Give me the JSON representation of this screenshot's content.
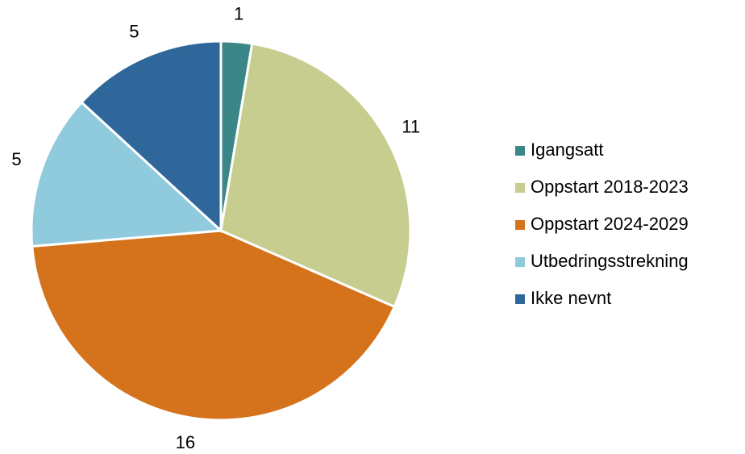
{
  "chart_data": {
    "type": "pie",
    "categories": [
      "Igangsatt",
      "Oppstart 2018-2023",
      "Oppstart 2024-2029",
      "Utbedringsstrekning",
      "Ikke nevnt"
    ],
    "values": [
      1,
      11,
      16,
      5,
      5
    ],
    "colors": [
      "#3b8686",
      "#c6cd8f",
      "#d5731c",
      "#8fcadd",
      "#30679a"
    ],
    "legend": "right"
  }
}
